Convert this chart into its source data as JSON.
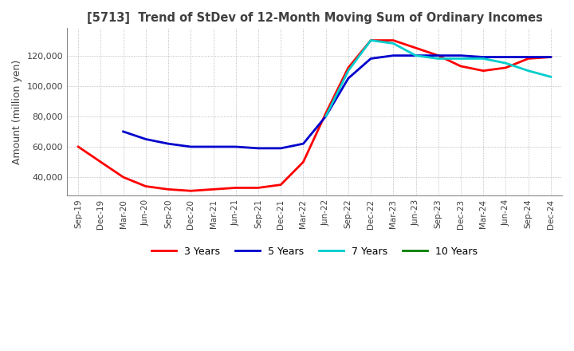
{
  "title": "[5713]  Trend of StDev of 12-Month Moving Sum of Ordinary Incomes",
  "ylabel": "Amount (million yen)",
  "ylim": [
    28000,
    138000
  ],
  "yticks": [
    40000,
    60000,
    80000,
    100000,
    120000
  ],
  "line_colors": {
    "3y": "#ff0000",
    "5y": "#0000cc",
    "7y": "#00cccc",
    "10y": "#008000"
  },
  "legend_labels": [
    "3 Years",
    "5 Years",
    "7 Years",
    "10 Years"
  ],
  "x_labels": [
    "Sep-19",
    "Dec-19",
    "Mar-20",
    "Jun-20",
    "Sep-20",
    "Dec-20",
    "Mar-21",
    "Jun-21",
    "Sep-21",
    "Dec-21",
    "Mar-22",
    "Jun-22",
    "Sep-22",
    "Dec-22",
    "Mar-23",
    "Jun-23",
    "Sep-23",
    "Dec-23",
    "Mar-24",
    "Jun-24",
    "Sep-24",
    "Dec-24"
  ],
  "data_3y": [
    60000,
    50000,
    40000,
    34000,
    32000,
    31000,
    32000,
    33000,
    33000,
    35000,
    50000,
    82000,
    112000,
    130000,
    130000,
    125000,
    120000,
    113000,
    110000,
    112000,
    118000,
    119000
  ],
  "data_5y": [
    null,
    null,
    70000,
    65000,
    62000,
    60000,
    60000,
    60000,
    59000,
    59000,
    62000,
    80000,
    105000,
    118000,
    120000,
    120000,
    120000,
    120000,
    119000,
    119000,
    119000,
    119000
  ],
  "data_7y": [
    null,
    null,
    null,
    null,
    null,
    null,
    null,
    null,
    null,
    null,
    null,
    80000,
    110000,
    130000,
    128000,
    120000,
    118000,
    118000,
    118000,
    115000,
    110000,
    106000
  ],
  "data_10y": [
    null,
    null,
    null,
    null,
    null,
    null,
    null,
    null,
    null,
    null,
    null,
    null,
    null,
    null,
    null,
    null,
    null,
    null,
    null,
    null,
    null,
    null
  ],
  "background_color": "#ffffff",
  "grid_color": "#aaaaaa",
  "title_color": "#404040",
  "axis_color": "#404040"
}
